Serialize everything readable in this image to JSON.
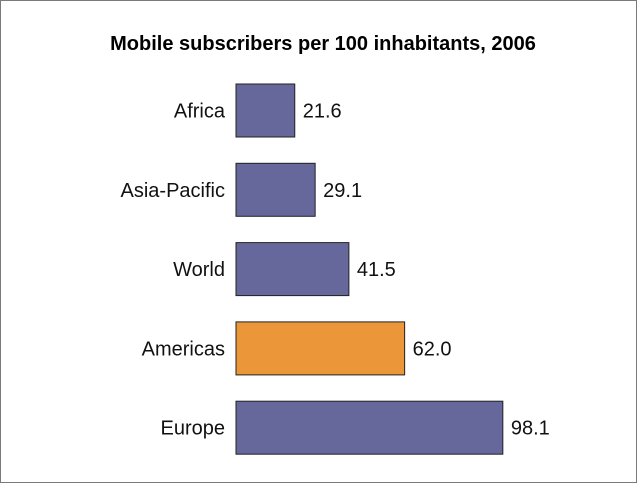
{
  "chart_data": {
    "type": "bar",
    "orientation": "horizontal",
    "title": "Mobile subscribers per 100 inhabitants, 2006",
    "categories": [
      "Africa",
      "Asia-Pacific",
      "World",
      "Americas",
      "Europe"
    ],
    "values": [
      21.6,
      29.1,
      41.5,
      62.0,
      98.1
    ],
    "value_labels": [
      "21.6",
      "29.1",
      "41.5",
      "62.0",
      "98.1"
    ],
    "colors": [
      "#66679a",
      "#66679a",
      "#66679a",
      "#ec963a",
      "#66679a"
    ],
    "xlabel": "",
    "ylabel": "",
    "xlim": [
      0,
      100
    ],
    "grid": false,
    "legend": "none"
  }
}
